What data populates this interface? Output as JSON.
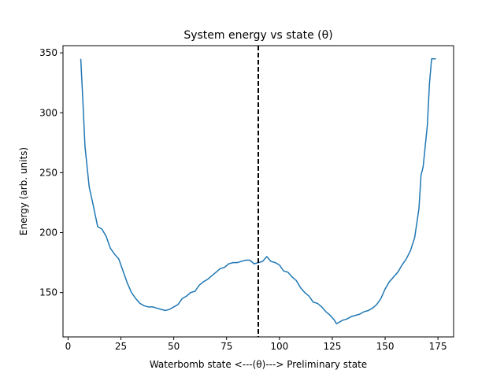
{
  "chart_data": {
    "type": "line",
    "title": "System energy vs state (θ)",
    "xlabel": "Waterbomb state <---(θ)---> Preliminary state",
    "ylabel": "Energy (arb. units)",
    "x": [
      6,
      7,
      8,
      10,
      12,
      14,
      16,
      18,
      20,
      22,
      24,
      26,
      28,
      30,
      32,
      34,
      36,
      38,
      40,
      42,
      44,
      46,
      48,
      50,
      52,
      54,
      56,
      58,
      60,
      62,
      64,
      66,
      68,
      70,
      72,
      74,
      76,
      78,
      80,
      82,
      84,
      86,
      88,
      90,
      92,
      94,
      96,
      98,
      100,
      102,
      104,
      106,
      108,
      110,
      112,
      114,
      116,
      118,
      120,
      122,
      124,
      126,
      127,
      130,
      132,
      134,
      136,
      138,
      140,
      142,
      144,
      146,
      148,
      150,
      152,
      154,
      156,
      158,
      160,
      162,
      164,
      166,
      167,
      168,
      170,
      171,
      172,
      174
    ],
    "series": [
      {
        "name": "Energy",
        "color": "#1f77b4",
        "values": [
          345,
          310,
          272,
          238,
          222,
          205,
          203,
          197,
          187,
          182,
          178,
          168,
          158,
          150,
          145,
          141,
          139,
          138,
          138,
          137,
          136,
          135,
          136,
          138,
          140,
          145,
          147,
          150,
          151,
          156,
          159,
          161,
          164,
          167,
          170,
          171,
          174,
          175,
          175,
          176,
          177,
          177,
          174,
          175,
          176,
          180,
          176,
          175,
          173,
          168,
          167,
          163,
          160,
          154,
          150,
          147,
          142,
          141,
          138,
          134,
          131,
          127,
          124,
          127,
          128,
          130,
          131,
          132,
          134,
          135,
          137,
          140,
          145,
          153,
          159,
          163,
          167,
          173,
          178,
          185,
          196,
          220,
          248,
          255,
          290,
          325,
          345,
          345
        ]
      }
    ],
    "vline": {
      "x": 90,
      "color": "#000000"
    },
    "xlim": [
      -2.4,
      182.4
    ],
    "ylim": [
      113,
      356
    ],
    "xticks": [
      0,
      25,
      50,
      75,
      100,
      125,
      150,
      175
    ],
    "yticks": [
      150,
      200,
      250,
      300,
      350
    ]
  }
}
